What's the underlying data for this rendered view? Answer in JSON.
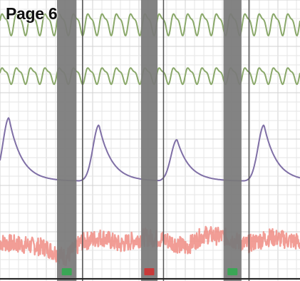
{
  "page_label": "Page 6",
  "colors": {
    "background": "#ffffff",
    "grid": "#e6e6e6",
    "grid_major": "#d2d2d2",
    "column_band": "#7a7a7a",
    "divider_line": "#555555",
    "breathing_trace": "#8aa86a",
    "cardio_trace": "#7f6fa6",
    "skin_trace": "#f08c84",
    "marker_green": "#3aa655",
    "marker_red": "#c83a3a"
  },
  "chart_data": {
    "type": "line",
    "title": "",
    "xlabel": "",
    "ylabel": "",
    "grid": true,
    "legend": "none",
    "x_range": [
      0,
      100
    ],
    "series": [
      {
        "key": "upper-breathing",
        "color": "#8aa86a",
        "cycles": 21,
        "amplitude": 0.6,
        "baseline": 0.5,
        "channel": 0
      },
      {
        "key": "lower-breathing",
        "color": "#8aa86a",
        "cycles": 21,
        "amplitude": 0.6,
        "baseline": 0.5,
        "channel": 1
      },
      {
        "key": "cardio",
        "color": "#7f6fa6",
        "channel": 2,
        "peaks": [
          {
            "x": 3,
            "height": 0.95
          },
          {
            "x": 33,
            "height": 0.85
          },
          {
            "x": 59,
            "height": 0.65
          },
          {
            "x": 88,
            "height": 0.85
          }
        ],
        "trough": 0.08
      },
      {
        "key": "skin",
        "color": "#f08c84",
        "channel": 3,
        "noise": 0.35,
        "level": [
          [
            0,
            0.45
          ],
          [
            15,
            0.35
          ],
          [
            22,
            0.15
          ],
          [
            27,
            0.45
          ],
          [
            34,
            0.55
          ],
          [
            40,
            0.4
          ],
          [
            48,
            0.55
          ],
          [
            55,
            0.5
          ],
          [
            62,
            0.35
          ],
          [
            68,
            0.6
          ],
          [
            75,
            0.55
          ],
          [
            82,
            0.4
          ],
          [
            90,
            0.55
          ],
          [
            100,
            0.45
          ]
        ]
      }
    ],
    "question_bands": [
      {
        "x_start": 19,
        "x_end": 25.5,
        "marker": "green",
        "line_x": 27.5
      },
      {
        "x_start": 47,
        "x_end": 52.5,
        "marker": "red",
        "line_x": 54.5
      },
      {
        "x_start": 74.5,
        "x_end": 80.5,
        "marker": "green",
        "line_x": 83
      }
    ]
  }
}
